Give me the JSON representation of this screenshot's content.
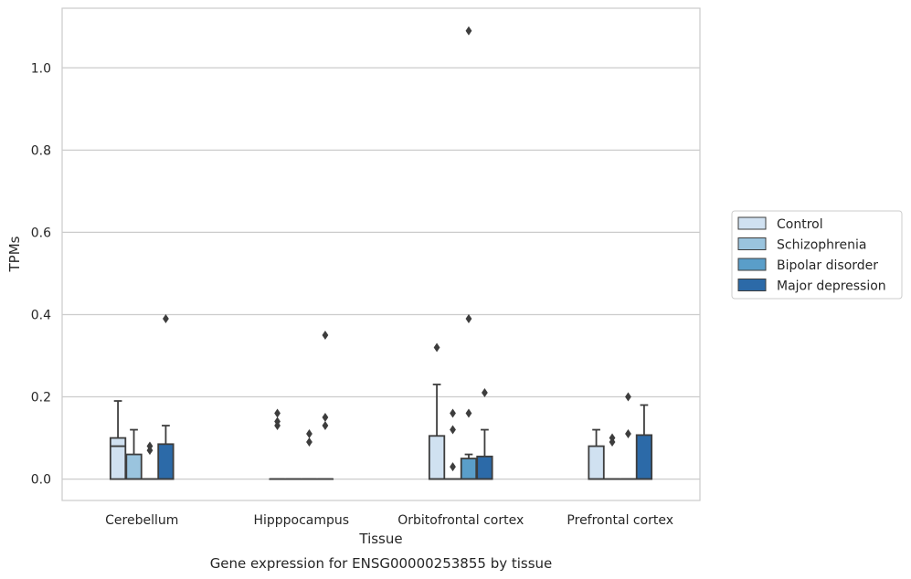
{
  "chart_data": {
    "type": "box",
    "caption": "Gene expression for ENSG00000253855 by tissue",
    "xlabel": "Tissue",
    "ylabel": "TPMs",
    "ylim": [
      -0.052,
      1.145
    ],
    "yticks": [
      "0.0",
      "0.2",
      "0.4",
      "0.6",
      "0.8",
      "1.0"
    ],
    "grid": true,
    "legend_position": "right",
    "categories": [
      "Cerebellum",
      "Hipppocampus",
      "Orbitofrontal cortex",
      "Prefrontal cortex"
    ],
    "series": [
      {
        "name": "Control",
        "color": "#d0e1f1",
        "boxes": [
          {
            "q1": 0.0,
            "median": 0.08,
            "q3": 0.1,
            "whisker_low": 0.0,
            "whisker_high": 0.19,
            "outliers": []
          },
          {
            "q1": 0.0,
            "median": 0.0,
            "q3": 0.0,
            "whisker_low": 0.0,
            "whisker_high": 0.0,
            "outliers": [
              0.13,
              0.14,
              0.16
            ]
          },
          {
            "q1": 0.0,
            "median": 0.0,
            "q3": 0.105,
            "whisker_low": 0.0,
            "whisker_high": 0.23,
            "outliers": [
              0.32
            ]
          },
          {
            "q1": 0.0,
            "median": 0.0,
            "q3": 0.08,
            "whisker_low": 0.0,
            "whisker_high": 0.12,
            "outliers": []
          }
        ]
      },
      {
        "name": "Schizophrenia",
        "color": "#9ac4de",
        "boxes": [
          {
            "q1": 0.0,
            "median": 0.0,
            "q3": 0.06,
            "whisker_low": 0.0,
            "whisker_high": 0.12,
            "outliers": []
          },
          {
            "q1": 0.0,
            "median": 0.0,
            "q3": 0.0,
            "whisker_low": 0.0,
            "whisker_high": 0.0,
            "outliers": []
          },
          {
            "q1": 0.0,
            "median": 0.0,
            "q3": 0.0,
            "whisker_low": 0.0,
            "whisker_high": 0.0,
            "outliers": [
              0.03,
              0.12,
              0.16
            ]
          },
          {
            "q1": 0.0,
            "median": 0.0,
            "q3": 0.0,
            "whisker_low": 0.0,
            "whisker_high": 0.0,
            "outliers": [
              0.09,
              0.1
            ]
          }
        ]
      },
      {
        "name": "Bipolar disorder",
        "color": "#5a9ec9",
        "boxes": [
          {
            "q1": 0.0,
            "median": 0.0,
            "q3": 0.0,
            "whisker_low": 0.0,
            "whisker_high": 0.0,
            "outliers": [
              0.07,
              0.08
            ]
          },
          {
            "q1": 0.0,
            "median": 0.0,
            "q3": 0.0,
            "whisker_low": 0.0,
            "whisker_high": 0.0,
            "outliers": [
              0.09,
              0.11
            ]
          },
          {
            "q1": 0.0,
            "median": 0.0,
            "q3": 0.05,
            "whisker_low": 0.0,
            "whisker_high": 0.06,
            "outliers": [
              0.16,
              0.39,
              1.09
            ]
          },
          {
            "q1": 0.0,
            "median": 0.0,
            "q3": 0.0,
            "whisker_low": 0.0,
            "whisker_high": 0.0,
            "outliers": [
              0.11,
              0.2
            ]
          }
        ]
      },
      {
        "name": "Major depression",
        "color": "#2c6aa8",
        "boxes": [
          {
            "q1": 0.0,
            "median": 0.0,
            "q3": 0.085,
            "whisker_low": 0.0,
            "whisker_high": 0.13,
            "outliers": [
              0.39
            ]
          },
          {
            "q1": 0.0,
            "median": 0.0,
            "q3": 0.0,
            "whisker_low": 0.0,
            "whisker_high": 0.0,
            "outliers": [
              0.13,
              0.15,
              0.35
            ]
          },
          {
            "q1": 0.0,
            "median": 0.0,
            "q3": 0.055,
            "whisker_low": 0.0,
            "whisker_high": 0.12,
            "outliers": [
              0.21
            ]
          },
          {
            "q1": 0.0,
            "median": 0.0,
            "q3": 0.107,
            "whisker_low": 0.0,
            "whisker_high": 0.18,
            "outliers": []
          }
        ]
      }
    ]
  }
}
